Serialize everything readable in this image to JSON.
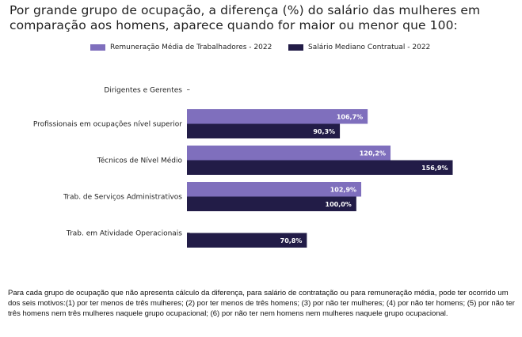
{
  "title": "Por grande grupo de ocupação, a diferença (%) do salário das mulheres em comparação aos homens, aparece quando for maior ou menor que 100:",
  "footnote": "Para cada grupo de ocupação que não apresenta cálculo da diferença, para salário de contratação ou para remuneração média, pode ter ocorrido um dos seis motivos:(1) por ter menos de três mulheres; (2) por ter menos de três homens; (3) por não ter mulheres; (4) por não ter homens; (5) por não ter três homens nem três mulheres naquele grupo ocupacional; (6) por não ter nem homens nem mulheres naquele grupo ocupacional.",
  "chart_data": {
    "type": "bar",
    "orientation": "horizontal",
    "categories": [
      "Dirigentes e Gerentes",
      "Profissionais em ocupações nível superior",
      "Técnicos de Nível Médio",
      "Trab. de Serviços Administrativos",
      "Trab. em Atividade Operacionais"
    ],
    "series": [
      {
        "name": "Remuneração Média de Trabalhadores - 2022",
        "color": "#7f6fbd",
        "values": [
          null,
          106.7,
          120.2,
          102.9,
          null
        ],
        "labels": [
          "",
          "106,7%",
          "120,2%",
          "102,9%",
          ""
        ]
      },
      {
        "name": "Salário Mediano Contratual - 2022",
        "color": "#221c47",
        "values": [
          null,
          90.3,
          156.9,
          100.0,
          70.8
        ],
        "labels": [
          "",
          "90,3%",
          "156,9%",
          "100,0%",
          "70,8%"
        ]
      }
    ],
    "xlim": [
      0,
      160
    ],
    "legend_position": "top",
    "grid": false
  }
}
